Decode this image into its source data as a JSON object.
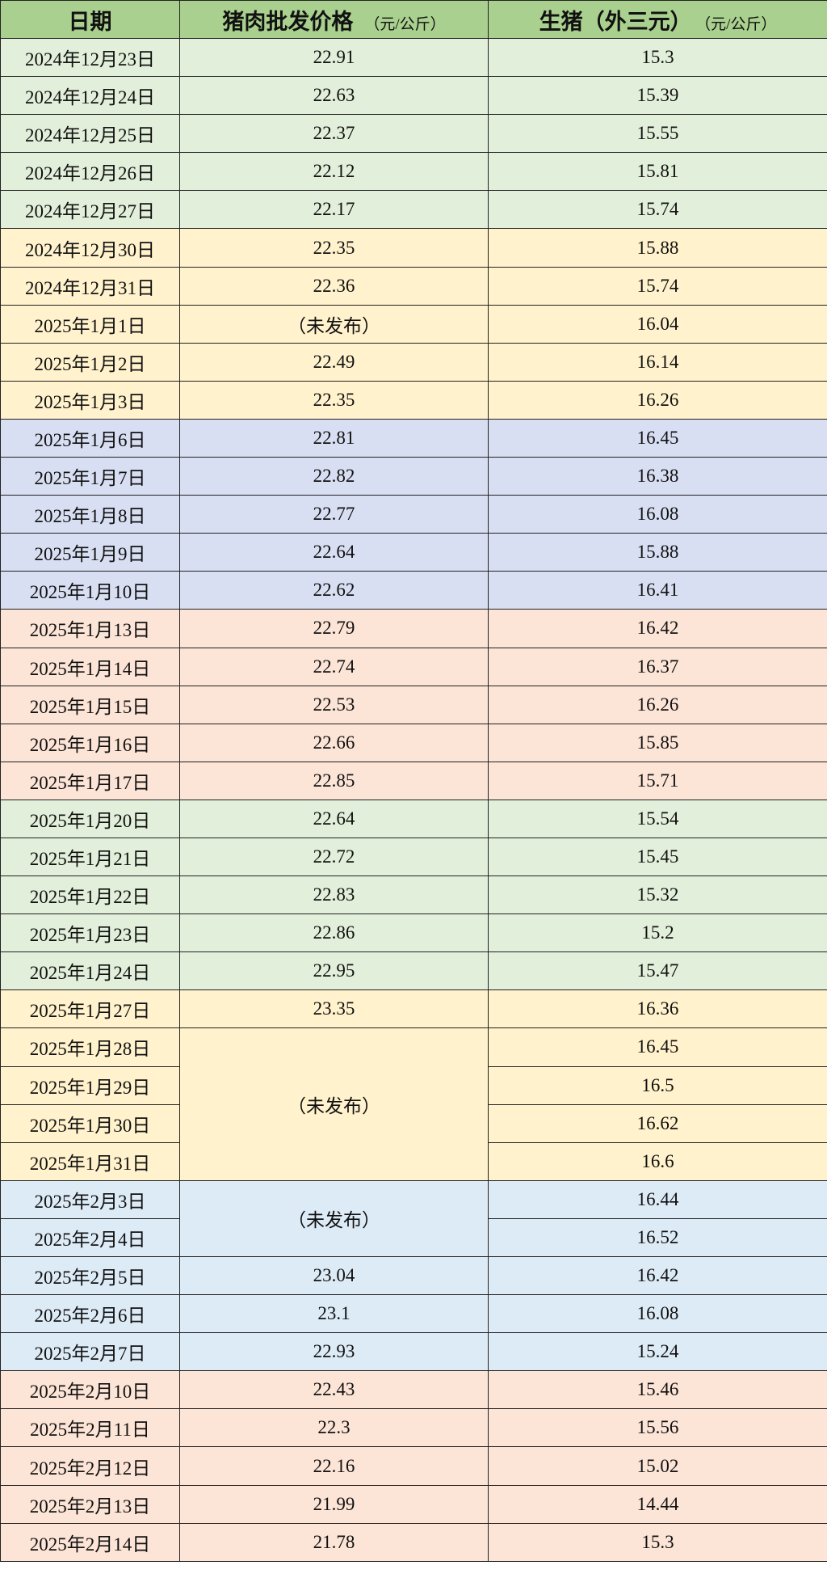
{
  "header": {
    "date": "日期",
    "pork": "猪肉批发价格",
    "pork_unit": "（元/公斤）",
    "hog": "生猪（外三元）",
    "hog_unit": "（元/公斤）"
  },
  "group_colors": {
    "green": "#e2efda",
    "yellow": "#fff2cc",
    "lavender": "#d9dff3",
    "peach": "#fce4d6",
    "blue": "#ddebf7",
    "header": "#a9d08e"
  },
  "rows": [
    {
      "date": "2024年12月23日",
      "pork": "22.91",
      "hog": "15.3",
      "group": "green"
    },
    {
      "date": "2024年12月24日",
      "pork": "22.63",
      "hog": "15.39",
      "group": "green"
    },
    {
      "date": "2024年12月25日",
      "pork": "22.37",
      "hog": "15.55",
      "group": "green"
    },
    {
      "date": "2024年12月26日",
      "pork": "22.12",
      "hog": "15.81",
      "group": "green"
    },
    {
      "date": "2024年12月27日",
      "pork": "22.17",
      "hog": "15.74",
      "group": "green"
    },
    {
      "date": "2024年12月30日",
      "pork": "22.35",
      "hog": "15.88",
      "group": "yellow"
    },
    {
      "date": "2024年12月31日",
      "pork": "22.36",
      "hog": "15.74",
      "group": "yellow"
    },
    {
      "date": "2025年1月1日",
      "pork": "（未发布）",
      "hog": "16.04",
      "group": "yellow"
    },
    {
      "date": "2025年1月2日",
      "pork": "22.49",
      "hog": "16.14",
      "group": "yellow"
    },
    {
      "date": "2025年1月3日",
      "pork": "22.35",
      "hog": "16.26",
      "group": "yellow"
    },
    {
      "date": "2025年1月6日",
      "pork": "22.81",
      "hog": "16.45",
      "group": "lavender"
    },
    {
      "date": "2025年1月7日",
      "pork": "22.82",
      "hog": "16.38",
      "group": "lavender"
    },
    {
      "date": "2025年1月8日",
      "pork": "22.77",
      "hog": "16.08",
      "group": "lavender"
    },
    {
      "date": "2025年1月9日",
      "pork": "22.64",
      "hog": "15.88",
      "group": "lavender"
    },
    {
      "date": "2025年1月10日",
      "pork": "22.62",
      "hog": "16.41",
      "group": "lavender"
    },
    {
      "date": "2025年1月13日",
      "pork": "22.79",
      "hog": "16.42",
      "group": "peach"
    },
    {
      "date": "2025年1月14日",
      "pork": "22.74",
      "hog": "16.37",
      "group": "peach"
    },
    {
      "date": "2025年1月15日",
      "pork": "22.53",
      "hog": "16.26",
      "group": "peach"
    },
    {
      "date": "2025年1月16日",
      "pork": "22.66",
      "hog": "15.85",
      "group": "peach"
    },
    {
      "date": "2025年1月17日",
      "pork": "22.85",
      "hog": "15.71",
      "group": "peach"
    },
    {
      "date": "2025年1月20日",
      "pork": "22.64",
      "hog": "15.54",
      "group": "green"
    },
    {
      "date": "2025年1月21日",
      "pork": "22.72",
      "hog": "15.45",
      "group": "green"
    },
    {
      "date": "2025年1月22日",
      "pork": "22.83",
      "hog": "15.32",
      "group": "green"
    },
    {
      "date": "2025年1月23日",
      "pork": "22.86",
      "hog": "15.2",
      "group": "green"
    },
    {
      "date": "2025年1月24日",
      "pork": "22.95",
      "hog": "15.47",
      "group": "green"
    },
    {
      "date": "2025年1月27日",
      "pork": "23.35",
      "hog": "16.36",
      "group": "yellow"
    },
    {
      "date": "2025年1月28日",
      "pork": "（未发布）",
      "pork_merged_rows": 4,
      "hog": "16.45",
      "group": "yellow"
    },
    {
      "date": "2025年1月29日",
      "pork_merged_above": true,
      "hog": "16.5",
      "group": "yellow"
    },
    {
      "date": "2025年1月30日",
      "pork_merged_above": true,
      "hog": "16.62",
      "group": "yellow"
    },
    {
      "date": "2025年1月31日",
      "pork_merged_above": true,
      "hog": "16.6",
      "group": "yellow"
    },
    {
      "date": "2025年2月3日",
      "pork": "（未发布）",
      "pork_merged_rows": 2,
      "hog": "16.44",
      "group": "blue"
    },
    {
      "date": "2025年2月4日",
      "pork_merged_above": true,
      "hog": "16.52",
      "group": "blue"
    },
    {
      "date": "2025年2月5日",
      "pork": "23.04",
      "hog": "16.42",
      "group": "blue"
    },
    {
      "date": "2025年2月6日",
      "pork": "23.1",
      "hog": "16.08",
      "group": "blue"
    },
    {
      "date": "2025年2月7日",
      "pork": "22.93",
      "hog": "15.24",
      "group": "blue"
    },
    {
      "date": "2025年2月10日",
      "pork": "22.43",
      "hog": "15.46",
      "group": "peach"
    },
    {
      "date": "2025年2月11日",
      "pork": "22.3",
      "hog": "15.56",
      "group": "peach"
    },
    {
      "date": "2025年2月12日",
      "pork": "22.16",
      "hog": "15.02",
      "group": "peach"
    },
    {
      "date": "2025年2月13日",
      "pork": "21.99",
      "hog": "14.44",
      "group": "peach"
    },
    {
      "date": "2025年2月14日",
      "pork": "21.78",
      "hog": "15.3",
      "group": "peach"
    }
  ]
}
